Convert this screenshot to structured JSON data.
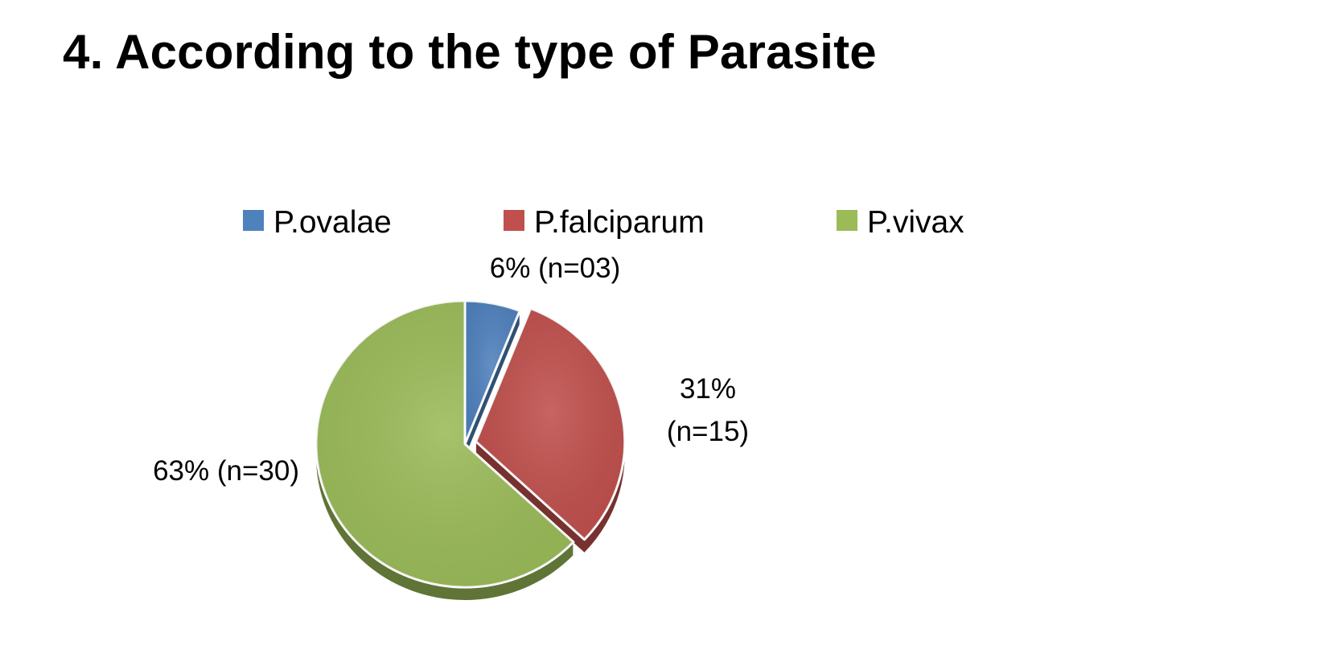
{
  "slide": {
    "title": "4. According to the type of Parasite"
  },
  "chart_data": {
    "type": "pie",
    "title": "",
    "categories": [
      "P.ovalae",
      "P.falciparum",
      "P.vivax"
    ],
    "values": [
      6,
      31,
      63
    ],
    "counts": [
      3,
      15,
      30
    ],
    "data_labels": [
      [
        "6% (n=03)"
      ],
      [
        "31%",
        "(n=15)"
      ],
      [
        "63% (n=30)"
      ]
    ],
    "colors": [
      "#4f81bd",
      "#c0504d",
      "#9bbb59"
    ],
    "exploded": [
      false,
      true,
      false
    ],
    "legend_position": "top",
    "style": "3d"
  }
}
